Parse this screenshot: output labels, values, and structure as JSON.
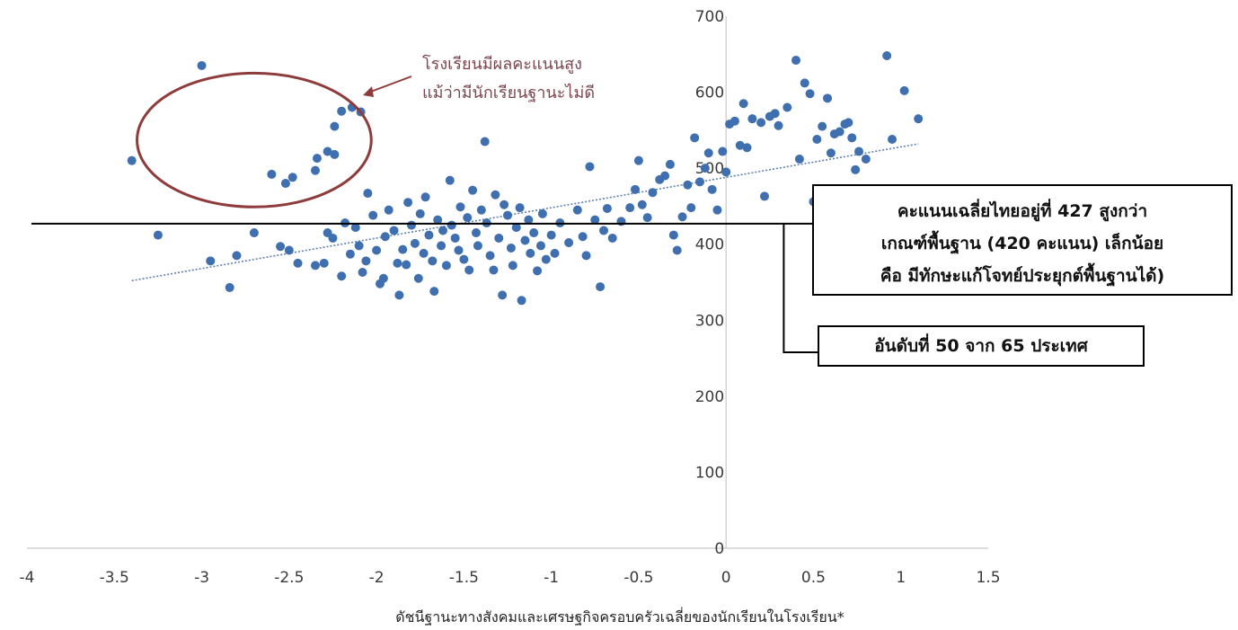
{
  "chart_data": {
    "type": "scatter",
    "title": "",
    "xlabel": "ดัชนีฐานะทางสังคมและเศรษฐกิจครอบครัวเฉลี่ยของนักเรียนในโรงเรียน*",
    "ylabel": "",
    "xlim": [
      -4,
      1.5
    ],
    "ylim": [
      0,
      700
    ],
    "x_ticks": [
      "-4",
      "-3.5",
      "-3",
      "-2.5",
      "-2",
      "-1.5",
      "-1",
      "-0.5",
      "0",
      "0.5",
      "1",
      "1.5"
    ],
    "y_ticks": [
      "0",
      "100",
      "200",
      "300",
      "400",
      "500",
      "600",
      "700"
    ],
    "grid": false,
    "colors": {
      "point": "#3f6fae",
      "trend": "#5f80b0",
      "circle": "#8e3b3b",
      "reference": "#000000"
    },
    "reference_line_y": 427,
    "trendline": {
      "x": [
        -3.4,
        1.1
      ],
      "y": [
        352,
        532
      ]
    },
    "highlight_circle": {
      "center": [
        -2.7,
        537
      ],
      "rx": 0.67,
      "ry": 88
    },
    "points": [
      {
        "x": -3.4,
        "y": 510
      },
      {
        "x": -3.0,
        "y": 635
      },
      {
        "x": -2.6,
        "y": 492
      },
      {
        "x": -2.52,
        "y": 480
      },
      {
        "x": -2.48,
        "y": 488
      },
      {
        "x": -2.35,
        "y": 497
      },
      {
        "x": -2.34,
        "y": 513
      },
      {
        "x": -2.28,
        "y": 522
      },
      {
        "x": -2.24,
        "y": 518
      },
      {
        "x": -2.24,
        "y": 555
      },
      {
        "x": -2.2,
        "y": 575
      },
      {
        "x": -2.14,
        "y": 580
      },
      {
        "x": -2.09,
        "y": 574
      },
      {
        "x": -3.25,
        "y": 412
      },
      {
        "x": -2.95,
        "y": 378
      },
      {
        "x": -2.84,
        "y": 343
      },
      {
        "x": -2.8,
        "y": 385
      },
      {
        "x": -2.7,
        "y": 415
      },
      {
        "x": -2.55,
        "y": 397
      },
      {
        "x": -2.5,
        "y": 392
      },
      {
        "x": -2.45,
        "y": 375
      },
      {
        "x": -2.35,
        "y": 372
      },
      {
        "x": -2.3,
        "y": 375
      },
      {
        "x": -2.28,
        "y": 415
      },
      {
        "x": -2.25,
        "y": 408
      },
      {
        "x": -2.2,
        "y": 358
      },
      {
        "x": -2.18,
        "y": 428
      },
      {
        "x": -2.15,
        "y": 387
      },
      {
        "x": -2.12,
        "y": 422
      },
      {
        "x": -2.1,
        "y": 398
      },
      {
        "x": -2.08,
        "y": 363
      },
      {
        "x": -2.06,
        "y": 378
      },
      {
        "x": -2.05,
        "y": 467
      },
      {
        "x": -2.02,
        "y": 438
      },
      {
        "x": -2.0,
        "y": 392
      },
      {
        "x": -1.98,
        "y": 348
      },
      {
        "x": -1.96,
        "y": 355
      },
      {
        "x": -1.95,
        "y": 410
      },
      {
        "x": -1.93,
        "y": 445
      },
      {
        "x": -1.9,
        "y": 418
      },
      {
        "x": -1.88,
        "y": 375
      },
      {
        "x": -1.87,
        "y": 333
      },
      {
        "x": -1.85,
        "y": 393
      },
      {
        "x": -1.83,
        "y": 373
      },
      {
        "x": -1.82,
        "y": 455
      },
      {
        "x": -1.8,
        "y": 425
      },
      {
        "x": -1.78,
        "y": 401
      },
      {
        "x": -1.76,
        "y": 355
      },
      {
        "x": -1.75,
        "y": 440
      },
      {
        "x": -1.73,
        "y": 388
      },
      {
        "x": -1.72,
        "y": 462
      },
      {
        "x": -1.7,
        "y": 412
      },
      {
        "x": -1.68,
        "y": 378
      },
      {
        "x": -1.67,
        "y": 338
      },
      {
        "x": -1.65,
        "y": 432
      },
      {
        "x": -1.63,
        "y": 398
      },
      {
        "x": -1.62,
        "y": 418
      },
      {
        "x": -1.6,
        "y": 372
      },
      {
        "x": -1.58,
        "y": 484
      },
      {
        "x": -1.57,
        "y": 425
      },
      {
        "x": -1.55,
        "y": 408
      },
      {
        "x": -1.53,
        "y": 392
      },
      {
        "x": -1.52,
        "y": 449
      },
      {
        "x": -1.5,
        "y": 380
      },
      {
        "x": -1.48,
        "y": 435
      },
      {
        "x": -1.47,
        "y": 366
      },
      {
        "x": -1.45,
        "y": 471
      },
      {
        "x": -1.43,
        "y": 415
      },
      {
        "x": -1.42,
        "y": 398
      },
      {
        "x": -1.4,
        "y": 445
      },
      {
        "x": -1.38,
        "y": 535
      },
      {
        "x": -1.37,
        "y": 428
      },
      {
        "x": -1.35,
        "y": 385
      },
      {
        "x": -1.33,
        "y": 366
      },
      {
        "x": -1.32,
        "y": 465
      },
      {
        "x": -1.3,
        "y": 408
      },
      {
        "x": -1.28,
        "y": 333
      },
      {
        "x": -1.27,
        "y": 452
      },
      {
        "x": -1.25,
        "y": 438
      },
      {
        "x": -1.23,
        "y": 395
      },
      {
        "x": -1.22,
        "y": 372
      },
      {
        "x": -1.2,
        "y": 422
      },
      {
        "x": -1.18,
        "y": 448
      },
      {
        "x": -1.17,
        "y": 326
      },
      {
        "x": -1.15,
        "y": 405
      },
      {
        "x": -1.13,
        "y": 432
      },
      {
        "x": -1.12,
        "y": 388
      },
      {
        "x": -1.1,
        "y": 415
      },
      {
        "x": -1.08,
        "y": 365
      },
      {
        "x": -1.06,
        "y": 398
      },
      {
        "x": -1.05,
        "y": 440
      },
      {
        "x": -1.03,
        "y": 380
      },
      {
        "x": -1.0,
        "y": 412
      },
      {
        "x": -0.98,
        "y": 388
      },
      {
        "x": -0.95,
        "y": 428
      },
      {
        "x": -0.9,
        "y": 402
      },
      {
        "x": -0.85,
        "y": 445
      },
      {
        "x": -0.82,
        "y": 410
      },
      {
        "x": -0.8,
        "y": 385
      },
      {
        "x": -0.78,
        "y": 502
      },
      {
        "x": -0.75,
        "y": 432
      },
      {
        "x": -0.72,
        "y": 344
      },
      {
        "x": -0.7,
        "y": 418
      },
      {
        "x": -0.68,
        "y": 447
      },
      {
        "x": -0.65,
        "y": 408
      },
      {
        "x": -0.6,
        "y": 430
      },
      {
        "x": -0.55,
        "y": 448
      },
      {
        "x": -0.52,
        "y": 472
      },
      {
        "x": -0.5,
        "y": 510
      },
      {
        "x": -0.48,
        "y": 452
      },
      {
        "x": -0.45,
        "y": 435
      },
      {
        "x": -0.42,
        "y": 468
      },
      {
        "x": -0.38,
        "y": 485
      },
      {
        "x": -0.35,
        "y": 490
      },
      {
        "x": -0.32,
        "y": 505
      },
      {
        "x": -0.3,
        "y": 412
      },
      {
        "x": -0.28,
        "y": 392
      },
      {
        "x": -0.25,
        "y": 436
      },
      {
        "x": -0.22,
        "y": 478
      },
      {
        "x": -0.2,
        "y": 448
      },
      {
        "x": -0.18,
        "y": 540
      },
      {
        "x": -0.15,
        "y": 482
      },
      {
        "x": -0.12,
        "y": 500
      },
      {
        "x": -0.1,
        "y": 520
      },
      {
        "x": -0.08,
        "y": 472
      },
      {
        "x": -0.05,
        "y": 445
      },
      {
        "x": -0.02,
        "y": 522
      },
      {
        "x": 0.0,
        "y": 495
      },
      {
        "x": 0.02,
        "y": 558
      },
      {
        "x": 0.05,
        "y": 562
      },
      {
        "x": 0.08,
        "y": 530
      },
      {
        "x": 0.1,
        "y": 585
      },
      {
        "x": 0.12,
        "y": 527
      },
      {
        "x": 0.15,
        "y": 565
      },
      {
        "x": 0.2,
        "y": 560
      },
      {
        "x": 0.22,
        "y": 463
      },
      {
        "x": 0.25,
        "y": 568
      },
      {
        "x": 0.28,
        "y": 572
      },
      {
        "x": 0.3,
        "y": 556
      },
      {
        "x": 0.35,
        "y": 580
      },
      {
        "x": 0.4,
        "y": 642
      },
      {
        "x": 0.42,
        "y": 512
      },
      {
        "x": 0.45,
        "y": 612
      },
      {
        "x": 0.48,
        "y": 598
      },
      {
        "x": 0.5,
        "y": 456
      },
      {
        "x": 0.52,
        "y": 538
      },
      {
        "x": 0.55,
        "y": 555
      },
      {
        "x": 0.58,
        "y": 592
      },
      {
        "x": 0.6,
        "y": 520
      },
      {
        "x": 0.62,
        "y": 545
      },
      {
        "x": 0.65,
        "y": 548
      },
      {
        "x": 0.68,
        "y": 558
      },
      {
        "x": 0.7,
        "y": 560
      },
      {
        "x": 0.72,
        "y": 540
      },
      {
        "x": 0.74,
        "y": 498
      },
      {
        "x": 0.76,
        "y": 522
      },
      {
        "x": 0.8,
        "y": 512
      },
      {
        "x": 0.92,
        "y": 648
      },
      {
        "x": 0.95,
        "y": 538
      },
      {
        "x": 1.02,
        "y": 602
      },
      {
        "x": 1.1,
        "y": 565
      }
    ],
    "annotations": [
      "โรงเรียนมีผลคะแนนสูง",
      "แม้ว่ามีนักเรียนฐานะไม่ดี"
    ]
  },
  "callouts": {
    "average": {
      "line1": "คะแนนเฉลี่ยไทยอยู่ที่  427 สูงกว่า",
      "line2": "เกณฑ์พื้นฐาน (420 คะแนน) เล็กน้อย",
      "line3": "คือ มีทักษะแก้โจทย์ประยุกต์พื้นฐานได้)"
    },
    "rank": "อันดับที่ 50 จาก 65 ประเทศ"
  }
}
